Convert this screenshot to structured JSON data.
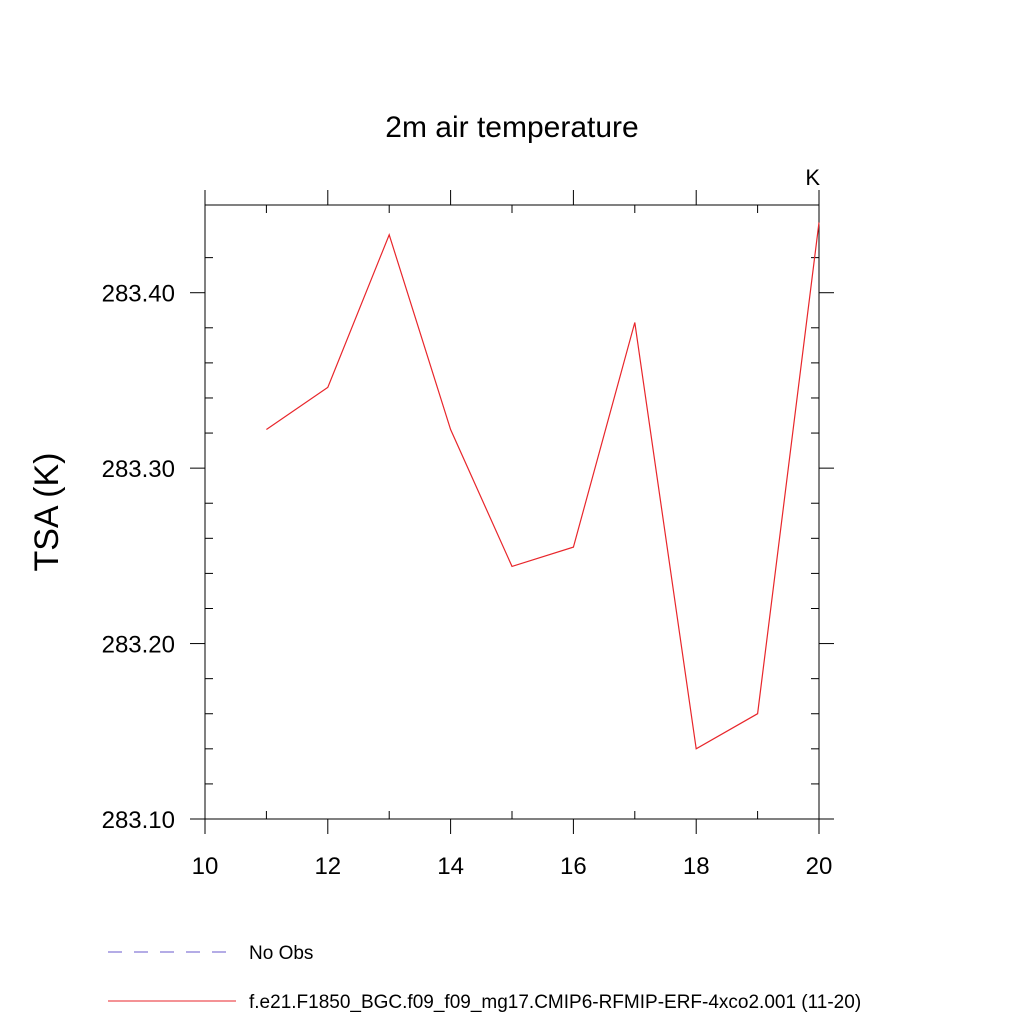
{
  "chart_data": {
    "type": "line",
    "title": "2m air temperature",
    "units_label": "K",
    "xlabel": "",
    "ylabel": "TSA  (K)",
    "xlim": [
      10,
      20
    ],
    "ylim": [
      283.1,
      283.45
    ],
    "x_ticks": [
      10,
      12,
      14,
      16,
      18,
      20
    ],
    "x_tick_labels": [
      "10",
      "12",
      "14",
      "16",
      "18",
      "20"
    ],
    "y_ticks": [
      283.1,
      283.2,
      283.3,
      283.4
    ],
    "y_tick_labels": [
      "283.10",
      "283.20",
      "283.30",
      "283.40"
    ],
    "grid": false,
    "legend_position": "bottom",
    "series": [
      {
        "name": "No Obs",
        "color": "#6a5acd",
        "style": "dashed",
        "x": [],
        "values": []
      },
      {
        "name": "f.e21.F1850_BGC.f09_f09_mg17.CMIP6-RFMIP-ERF-4xco2.001 (11-20)",
        "color": "#e8262b",
        "style": "solid",
        "x": [
          11,
          12,
          13,
          14,
          15,
          16,
          17,
          18,
          19,
          20
        ],
        "values": [
          283.322,
          283.346,
          283.433,
          283.322,
          283.244,
          283.255,
          283.383,
          283.14,
          283.16,
          283.44
        ]
      }
    ]
  }
}
